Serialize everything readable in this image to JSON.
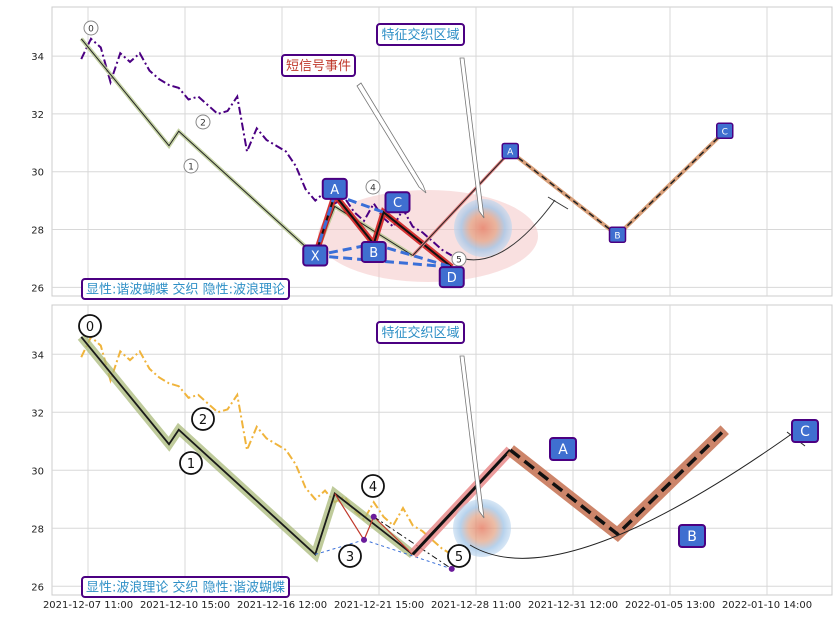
{
  "chart_data": {
    "type": "line",
    "x_tick_labels": [
      "2021-12-07 11:00",
      "2021-12-10 15:00",
      "2021-12-16 12:00",
      "2021-12-21 15:00",
      "2021-12-28 11:00",
      "2021-12-31 12:00",
      "2022-01-05 13:00",
      "2022-01-10 14:00"
    ],
    "y_ticks": [
      26,
      28,
      30,
      32,
      34
    ],
    "ylim": [
      25.7,
      35.7
    ],
    "xlim": [
      -3,
      77
    ],
    "grid": true,
    "panels": [
      {
        "caption": "显性:谐波蝴蝶 交织 隐性:波浪理论",
        "annotation_signal": "短信号事件",
        "annotation_zone": "特征交织区域",
        "price_series": {
          "color": "#4b0082",
          "style": "dashdot",
          "x": [
            0,
            1,
            2,
            3,
            4,
            5,
            6,
            7,
            8,
            9,
            10,
            11,
            12,
            13,
            14,
            15,
            16,
            17,
            18,
            19,
            20,
            21,
            22,
            23,
            24,
            25,
            26,
            27,
            28,
            29,
            30,
            31,
            32,
            33,
            34,
            35,
            36,
            37,
            38
          ],
          "y": [
            33.9,
            34.6,
            34.3,
            33.1,
            34.1,
            33.8,
            34.1,
            33.5,
            33.2,
            33.0,
            32.9,
            32.5,
            32.6,
            32.3,
            32.0,
            32.1,
            32.6,
            30.7,
            31.5,
            31.1,
            30.9,
            30.7,
            30.2,
            29.4,
            29.0,
            29.3,
            28.9,
            29.1,
            28.6,
            28.3,
            28.9,
            28.4,
            28.1,
            28.7,
            28.1,
            27.9,
            27.6,
            27.3,
            27.1
          ]
        },
        "wave_points": [
          {
            "label": "0",
            "x": 0,
            "y": 34.6
          },
          {
            "label": "1",
            "x": 9,
            "y": 30.9
          },
          {
            "label": "2",
            "x": 10,
            "y": 31.4
          },
          {
            "label": "3",
            "x": 24,
            "y": 27.1
          },
          {
            "label": "4",
            "x": 26,
            "y": 28.8
          },
          {
            "label": "5",
            "x": 34,
            "y": 27.1
          }
        ],
        "harmonic_points": [
          {
            "label": "X",
            "x": 24,
            "y": 27.1
          },
          {
            "label": "A",
            "x": 26,
            "y": 29.2
          },
          {
            "label": "B",
            "x": 30,
            "y": 27.5
          },
          {
            "label": "C",
            "x": 31,
            "y": 28.6
          },
          {
            "label": "D",
            "x": 38,
            "y": 26.7
          }
        ],
        "projection_points": [
          {
            "label": "A",
            "x": 44,
            "y": 30.7
          },
          {
            "label": "B",
            "x": 55,
            "y": 27.8
          },
          {
            "label": "C",
            "x": 66,
            "y": 31.4
          }
        ]
      },
      {
        "caption": "显性:波浪理论 交织 隐性:谐波蝴蝶",
        "annotation_zone": "特征交织区域",
        "price_series": {
          "color": "#f0b43c",
          "style": "dashdot",
          "x": [
            0,
            1,
            2,
            3,
            4,
            5,
            6,
            7,
            8,
            9,
            10,
            11,
            12,
            13,
            14,
            15,
            16,
            17,
            18,
            19,
            20,
            21,
            22,
            23,
            24,
            25,
            26,
            27,
            28,
            29,
            30,
            31,
            32,
            33,
            34,
            35,
            36,
            37,
            38
          ],
          "y": [
            33.9,
            34.6,
            34.3,
            33.1,
            34.1,
            33.8,
            34.1,
            33.5,
            33.2,
            33.0,
            32.9,
            32.5,
            32.6,
            32.3,
            32.0,
            32.1,
            32.6,
            30.7,
            31.5,
            31.1,
            30.9,
            30.7,
            30.2,
            29.4,
            29.0,
            29.3,
            28.9,
            29.1,
            28.6,
            28.3,
            28.9,
            28.4,
            28.1,
            28.7,
            28.1,
            27.9,
            27.6,
            27.3,
            27.1
          ]
        },
        "wave_points": [
          {
            "label": "0",
            "x": 0,
            "y": 34.6
          },
          {
            "label": "1",
            "x": 9,
            "y": 30.9
          },
          {
            "label": "2",
            "x": 10,
            "y": 31.4
          },
          {
            "label": "3",
            "x": 24,
            "y": 27.1
          },
          {
            "label": "4",
            "x": 26,
            "y": 29.2
          },
          {
            "label": "5",
            "x": 34,
            "y": 27.1
          }
        ],
        "harmonic_points": [
          {
            "label": "A",
            "x": 44,
            "y": 30.7
          },
          {
            "label": "B",
            "x": 55,
            "y": 27.8
          },
          {
            "label": "C",
            "x": 66,
            "y": 31.4
          }
        ]
      }
    ]
  }
}
